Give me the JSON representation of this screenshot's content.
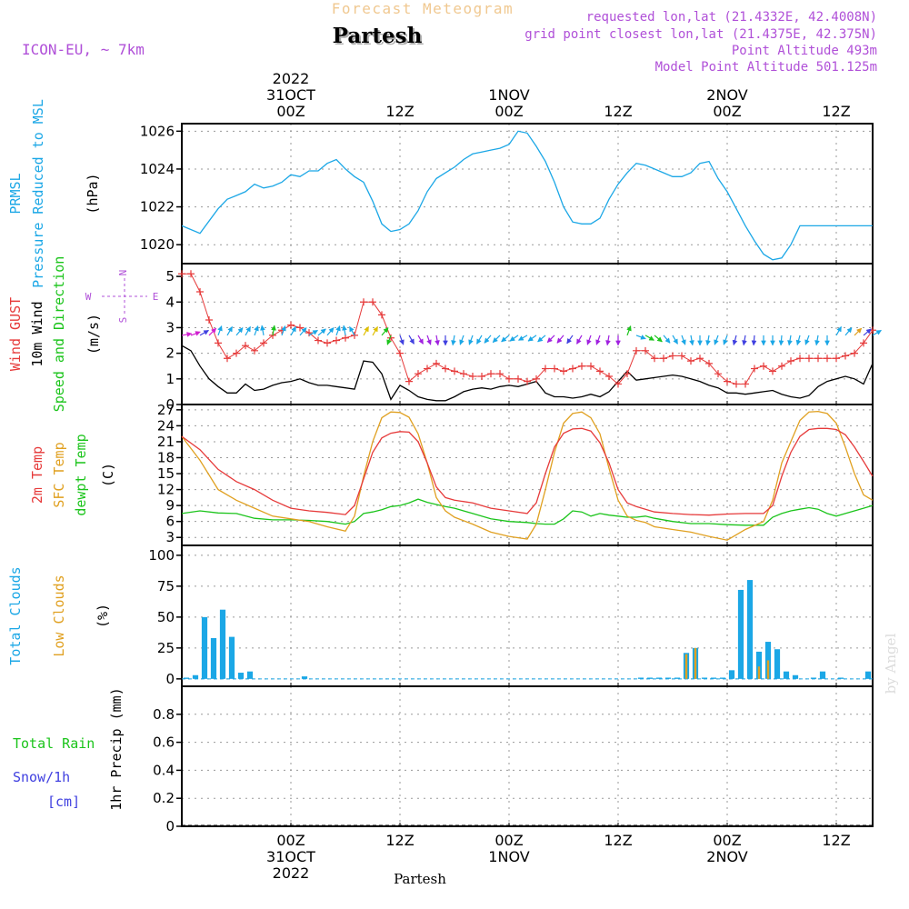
{
  "header": {
    "forecast_title": "Forecast Meteogram",
    "station": "Partesh",
    "model": "ICON-EU, ~ 7km",
    "requested": "requested lon,lat (21.4332E, 42.4008N)",
    "grid_point": "grid point closest lon,lat (21.4375E, 42.375N)",
    "point_altitude": "Point Altitude 493m",
    "model_altitude": "Model Point Altitude 501.125m",
    "footer_station": "Partesh",
    "credit": "by Angel"
  },
  "colors": {
    "pressure": "#1ba7e6",
    "gust": "#e63a3a",
    "wind": "#000000",
    "temp2m": "#e63a3a",
    "sfc": "#e0a020",
    "dewpt": "#1bc41b",
    "total_clouds": "#1ba7e6",
    "low_clouds": "#e0a020",
    "rain": "#1bc41b",
    "snow": "#4040e0",
    "meta": "#b050d8",
    "title_faint": "#f0c890"
  },
  "time_axis": {
    "top_labels": [
      {
        "t": 12,
        "lines": [
          "2022",
          "31OCT",
          "00Z"
        ]
      },
      {
        "t": 24,
        "lines": [
          "12Z"
        ]
      },
      {
        "t": 36,
        "lines": [
          "1NOV",
          "00Z"
        ]
      },
      {
        "t": 48,
        "lines": [
          "12Z"
        ]
      },
      {
        "t": 60,
        "lines": [
          "2NOV",
          "00Z"
        ]
      },
      {
        "t": 72,
        "lines": [
          "12Z"
        ]
      }
    ],
    "bottom_labels": [
      {
        "t": 12,
        "lines": [
          "00Z",
          "31OCT",
          "2022"
        ]
      },
      {
        "t": 24,
        "lines": [
          "12Z"
        ]
      },
      {
        "t": 36,
        "lines": [
          "00Z",
          "1NOV"
        ]
      },
      {
        "t": 48,
        "lines": [
          "12Z"
        ]
      },
      {
        "t": 60,
        "lines": [
          "00Z",
          "2NOV"
        ]
      },
      {
        "t": 72,
        "lines": [
          "12Z"
        ]
      }
    ]
  },
  "panels": {
    "pressure": {
      "label_lines": [
        {
          "text": "PRMSL",
          "color": "#1ba7e6"
        },
        {
          "text": "Pressure Reduced to MSL",
          "color": "#1ba7e6"
        }
      ],
      "unit": "(hPa)",
      "ticks": [
        1020,
        1022,
        1024,
        1026
      ]
    },
    "wind": {
      "label_lines": [
        {
          "text": "Wind GUST",
          "color": "#e63a3a"
        },
        {
          "text": "10m Wind",
          "color": "#000000"
        },
        {
          "text": "Speed and Direction",
          "color": "#1bc41b"
        }
      ],
      "unit": "(m/s)",
      "ticks": [
        0,
        1,
        2,
        3,
        4,
        5
      ],
      "compass": {
        "n": "N",
        "s": "S",
        "w": "W",
        "e": "E"
      }
    },
    "temp": {
      "label_lines": [
        {
          "text": "2m Temp",
          "color": "#e63a3a"
        },
        {
          "text": "SFC Temp",
          "color": "#e0a020"
        },
        {
          "text": "dewpt Temp",
          "color": "#1bc41b"
        }
      ],
      "unit": "(C)",
      "ticks": [
        3,
        6,
        9,
        12,
        15,
        18,
        21,
        24,
        27
      ]
    },
    "clouds": {
      "label_lines": [
        {
          "text": "Total Clouds",
          "color": "#1ba7e6"
        },
        {
          "text": "Low Clouds",
          "color": "#e0a020"
        }
      ],
      "unit": "(%)",
      "ticks": [
        0,
        25,
        50,
        75,
        100
      ]
    },
    "precip": {
      "left_labels": [
        {
          "text": "Total  Rain",
          "color": "#1bc41b"
        },
        {
          "text": "Snow/1h",
          "color": "#4040e0"
        },
        {
          "text": "[cm]",
          "color": "#4040e0"
        }
      ],
      "unit": "1hr Precip (mm)",
      "ticks": [
        0,
        0.2,
        0.4,
        0.6,
        0.8
      ]
    }
  },
  "chart_data": {
    "type": "line",
    "x_unit": "forecast hours from 30 OCT 12Z (00Z 31OCT at 12, 12Z at 24, 00Z 1NOV at 36, 12Z at 48, 00Z 2NOV at 60, 12Z at 72)",
    "x_range": [
      0,
      76
    ],
    "pressure_hpa": {
      "ylim": [
        1019.0,
        1026.4
      ],
      "x": [
        0,
        2,
        4,
        5,
        6,
        7,
        8,
        9,
        10,
        11,
        12,
        13,
        14,
        15,
        16,
        17,
        18,
        19,
        20,
        21,
        22,
        23,
        24,
        25,
        26,
        27,
        28,
        29,
        30,
        31,
        32,
        33,
        34,
        35,
        36,
        37,
        38,
        39,
        40,
        41,
        42,
        43,
        44,
        45,
        46,
        47,
        48,
        49,
        50,
        51,
        52,
        53,
        54,
        55,
        56,
        57,
        58,
        59,
        60,
        61,
        62,
        63,
        64,
        65,
        66,
        67,
        68,
        69,
        70,
        71,
        72,
        73,
        74,
        75,
        76
      ],
      "y": [
        1021.0,
        1020.6,
        1021.9,
        1022.4,
        1022.6,
        1022.8,
        1023.2,
        1023.0,
        1023.1,
        1023.3,
        1023.7,
        1023.6,
        1023.9,
        1023.9,
        1024.3,
        1024.5,
        1024.0,
        1023.6,
        1023.3,
        1022.3,
        1021.1,
        1020.7,
        1020.8,
        1021.1,
        1021.8,
        1022.8,
        1023.5,
        1023.8,
        1024.1,
        1024.5,
        1024.8,
        1024.9,
        1025.0,
        1025.1,
        1025.3,
        1026.0,
        1025.9,
        1025.2,
        1024.4,
        1023.3,
        1022.0,
        1021.2,
        1021.1,
        1021.1,
        1021.4,
        1022.4,
        1023.2,
        1023.8,
        1024.3,
        1024.2,
        1024.0,
        1023.8,
        1023.6,
        1023.6,
        1023.8,
        1024.3,
        1024.4,
        1023.5,
        1022.8,
        1021.9,
        1021.0,
        1020.2,
        1019.5,
        1019.2,
        1019.3,
        1020.0,
        1021.0,
        1021.0,
        1021.0,
        1021.0,
        1021.0,
        1021.0,
        1021.0,
        1021.0,
        1021.0
      ]
    },
    "wind_gust_ms": {
      "ylim": [
        0,
        5.5
      ],
      "x": [
        0,
        1,
        2,
        3,
        4,
        5,
        6,
        7,
        8,
        9,
        10,
        11,
        12,
        13,
        14,
        15,
        16,
        17,
        18,
        19,
        20,
        21,
        22,
        23,
        24,
        25,
        26,
        27,
        28,
        29,
        30,
        31,
        32,
        33,
        34,
        35,
        36,
        37,
        38,
        39,
        40,
        41,
        42,
        43,
        44,
        45,
        46,
        47,
        48,
        49,
        50,
        51,
        52,
        53,
        54,
        55,
        56,
        57,
        58,
        59,
        60,
        61,
        62,
        63,
        64,
        65,
        66,
        67,
        68,
        69,
        70,
        71,
        72,
        73,
        74,
        75,
        76
      ],
      "y": [
        5.1,
        5.1,
        4.4,
        3.3,
        2.4,
        1.8,
        2.0,
        2.3,
        2.1,
        2.4,
        2.7,
        2.9,
        3.1,
        3.0,
        2.8,
        2.5,
        2.4,
        2.5,
        2.6,
        2.7,
        4.0,
        4.0,
        3.5,
        2.6,
        2.0,
        0.9,
        1.2,
        1.4,
        1.6,
        1.4,
        1.3,
        1.2,
        1.1,
        1.1,
        1.2,
        1.2,
        1.0,
        1.0,
        0.9,
        1.0,
        1.4,
        1.4,
        1.3,
        1.4,
        1.5,
        1.5,
        1.3,
        1.1,
        0.8,
        1.2,
        2.1,
        2.1,
        1.8,
        1.8,
        1.9,
        1.9,
        1.7,
        1.8,
        1.6,
        1.2,
        0.9,
        0.8,
        0.8,
        1.4,
        1.5,
        1.3,
        1.5,
        1.7,
        1.8,
        1.8,
        1.8,
        1.8,
        1.8,
        1.9,
        2.0,
        2.4,
        2.9
      ]
    },
    "wind_10m_ms": {
      "x": [
        0,
        1,
        2,
        3,
        4,
        5,
        6,
        7,
        8,
        9,
        10,
        11,
        12,
        13,
        14,
        15,
        16,
        17,
        18,
        19,
        20,
        21,
        22,
        23,
        24,
        25,
        26,
        27,
        28,
        29,
        30,
        31,
        32,
        33,
        34,
        35,
        36,
        37,
        38,
        39,
        40,
        41,
        42,
        43,
        44,
        45,
        46,
        47,
        48,
        49,
        50,
        51,
        52,
        53,
        54,
        55,
        56,
        57,
        58,
        59,
        60,
        61,
        62,
        63,
        64,
        65,
        66,
        67,
        68,
        69,
        70,
        71,
        72,
        73,
        74,
        75,
        76
      ],
      "y": [
        2.3,
        2.1,
        1.5,
        1.0,
        0.7,
        0.45,
        0.45,
        0.8,
        0.55,
        0.6,
        0.75,
        0.85,
        0.9,
        1.0,
        0.85,
        0.75,
        0.75,
        0.7,
        0.65,
        0.6,
        1.7,
        1.65,
        1.2,
        0.2,
        0.75,
        0.55,
        0.3,
        0.2,
        0.15,
        0.15,
        0.3,
        0.5,
        0.6,
        0.65,
        0.6,
        0.7,
        0.75,
        0.7,
        0.8,
        0.9,
        0.45,
        0.3,
        0.3,
        0.25,
        0.3,
        0.4,
        0.3,
        0.5,
        0.9,
        1.3,
        0.95,
        1.0,
        1.05,
        1.1,
        1.15,
        1.1,
        1.0,
        0.9,
        0.75,
        0.65,
        0.45,
        0.45,
        0.4,
        0.45,
        0.5,
        0.55,
        0.4,
        0.3,
        0.25,
        0.35,
        0.7,
        0.9,
        1.0,
        1.1,
        1.0,
        0.8,
        1.6
      ]
    },
    "wind_direction_arrows": {
      "note": "arrows at y≈2.7 m/s, colored by speed",
      "x": [
        0,
        1,
        2,
        3,
        4,
        5,
        6,
        7,
        8,
        9,
        10,
        11,
        12,
        13,
        14,
        15,
        16,
        17,
        18,
        19,
        20,
        21,
        22,
        23,
        24,
        25,
        26,
        27,
        28,
        29,
        30,
        31,
        32,
        33,
        34,
        35,
        36,
        37,
        38,
        39,
        40,
        41,
        42,
        43,
        44,
        45,
        46,
        47,
        48,
        49,
        50,
        51,
        52,
        53,
        54,
        55,
        56,
        57,
        58,
        59,
        60,
        61,
        62,
        63,
        64,
        65,
        66,
        67,
        68,
        69,
        70,
        71,
        72,
        73,
        74,
        75,
        76
      ],
      "dir_deg": [
        80,
        70,
        60,
        45,
        20,
        30,
        40,
        30,
        20,
        350,
        10,
        20,
        30,
        40,
        60,
        50,
        40,
        20,
        350,
        330,
        30,
        30,
        40,
        200,
        160,
        150,
        150,
        160,
        170,
        180,
        190,
        200,
        200,
        210,
        220,
        225,
        230,
        235,
        240,
        235,
        230,
        225,
        220,
        215,
        210,
        200,
        200,
        190,
        180,
        20,
        110,
        120,
        130,
        140,
        150,
        160,
        170,
        180,
        190,
        200,
        200,
        195,
        190,
        185,
        180,
        180,
        185,
        190,
        195,
        200,
        190,
        180,
        30,
        40,
        45,
        50,
        60
      ],
      "colors": [
        "#d020d0",
        "#d020d0",
        "#4040e0",
        "#d020d0",
        "#1ba7e6",
        "#1ba7e6",
        "#1ba7e6",
        "#1ba7e6",
        "#1ba7e6",
        "#1ba7e6",
        "#1bc41b",
        "#1ba7e6",
        "#1ba7e6",
        "#1ba7e6",
        "#1ba7e6",
        "#1ba7e6",
        "#1ba7e6",
        "#1ba7e6",
        "#1ba7e6",
        "#1ba7e6",
        "#e0c000",
        "#e0c000",
        "#1bc41b",
        "#1bc41b",
        "#4040e0",
        "#4040e0",
        "#a020e0",
        "#a020e0",
        "#a020e0",
        "#4040e0",
        "#1ba7e6",
        "#1ba7e6",
        "#1ba7e6",
        "#1ba7e6",
        "#1ba7e6",
        "#1ba7e6",
        "#1ba7e6",
        "#1ba7e6",
        "#1ba7e6",
        "#1ba7e6",
        "#1ba7e6",
        "#a020e0",
        "#a020e0",
        "#4040e0",
        "#a020e0",
        "#a020e0",
        "#a020e0",
        "#a020e0",
        "#a020e0",
        "#1bc41b",
        "#1ba7e6",
        "#1bc41b",
        "#1bc41b",
        "#1ba7e6",
        "#1ba7e6",
        "#1ba7e6",
        "#1ba7e6",
        "#1ba7e6",
        "#1ba7e6",
        "#1ba7e6",
        "#1ba7e6",
        "#4040e0",
        "#4040e0",
        "#4040e0",
        "#1ba7e6",
        "#1ba7e6",
        "#1ba7e6",
        "#1ba7e6",
        "#1ba7e6",
        "#1ba7e6",
        "#1ba7e6",
        "#1ba7e6",
        "#1ba7e6",
        "#1ba7e6",
        "#e0a020",
        "#4040e0",
        "#1ba7e6"
      ]
    },
    "temp_c": {
      "ylim": [
        1.5,
        28
      ],
      "x": [
        0,
        2,
        4,
        6,
        8,
        10,
        12,
        14,
        16,
        18,
        19,
        20,
        21,
        22,
        23,
        24,
        25,
        26,
        27,
        28,
        29,
        30,
        32,
        34,
        36,
        38,
        39,
        40,
        41,
        42,
        43,
        44,
        45,
        46,
        47,
        48,
        49,
        50,
        51,
        52,
        54,
        56,
        58,
        60,
        62,
        64,
        65,
        66,
        67,
        68,
        69,
        70,
        71,
        72,
        73,
        74,
        75,
        76
      ],
      "t2m": [
        22.0,
        19.5,
        15.8,
        13.5,
        12.0,
        10.0,
        8.5,
        8.0,
        7.7,
        7.3,
        9.0,
        14.0,
        19.0,
        21.7,
        22.6,
        22.9,
        22.8,
        21.0,
        17.0,
        12.5,
        10.5,
        10.0,
        9.5,
        8.5,
        8.0,
        7.5,
        9.5,
        15.0,
        20.0,
        22.6,
        23.4,
        23.5,
        23.0,
        20.8,
        17.0,
        12.0,
        9.5,
        8.8,
        8.3,
        7.8,
        7.5,
        7.3,
        7.2,
        7.4,
        7.5,
        7.5,
        9.0,
        14.5,
        19.0,
        22.0,
        23.3,
        23.5,
        23.5,
        23.3,
        22.3,
        20.0,
        17.3,
        14.5
      ],
      "sfc": [
        22.0,
        17.5,
        12.0,
        10.0,
        8.5,
        7.0,
        6.5,
        6.0,
        5.0,
        4.2,
        7.0,
        14.5,
        21.0,
        25.5,
        26.6,
        26.5,
        25.6,
        22.5,
        17.0,
        10.5,
        8.0,
        6.8,
        5.5,
        4.0,
        3.2,
        2.7,
        5.5,
        12.0,
        19.0,
        24.5,
        26.3,
        26.6,
        25.5,
        22.5,
        16.0,
        10.0,
        7.0,
        6.2,
        5.8,
        5.0,
        4.5,
        4.0,
        3.2,
        2.5,
        4.5,
        6.0,
        10.0,
        17.0,
        21.0,
        25.0,
        26.6,
        26.7,
        26.3,
        24.5,
        20.0,
        15.0,
        11.0,
        10.0
      ],
      "dewpt": [
        7.5,
        8.0,
        7.6,
        7.5,
        6.6,
        6.3,
        6.3,
        6.2,
        6.0,
        5.5,
        6.0,
        7.5,
        7.8,
        8.2,
        8.8,
        9.0,
        9.5,
        10.2,
        9.6,
        9.2,
        8.8,
        8.5,
        7.5,
        6.5,
        6.0,
        5.8,
        5.6,
        5.5,
        5.5,
        6.5,
        8.0,
        7.8,
        7.0,
        7.5,
        7.2,
        7.0,
        6.8,
        6.8,
        7.0,
        6.6,
        6.0,
        5.6,
        5.6,
        5.4,
        5.3,
        5.3,
        6.8,
        7.5,
        8.0,
        8.3,
        8.6,
        8.3,
        7.5,
        7.0,
        7.5,
        8.0,
        8.5,
        9.0
      ]
    },
    "total_clouds_pct": {
      "ylim": [
        -6,
        108
      ],
      "x": [
        0.5,
        1.5,
        2.5,
        3.5,
        4.5,
        5.5,
        6.5,
        7.5,
        13.5,
        49.5,
        50.5,
        51.5,
        52.5,
        53.5,
        54.5,
        55.5,
        56.5,
        57.5,
        58.5,
        59.5,
        60.5,
        61.5,
        62.5,
        63.5,
        64.5,
        65.5,
        66.5,
        67.5,
        68.5,
        69.5,
        70.5,
        71.5,
        72.5,
        73.5,
        74.5,
        75.5
      ],
      "values": [
        1,
        3,
        50,
        33,
        56,
        34,
        5,
        6,
        2,
        0,
        1,
        1,
        1,
        1,
        1,
        21,
        25,
        1,
        1,
        1,
        7,
        72,
        80,
        22,
        30,
        24,
        6,
        3,
        0,
        1,
        6,
        0,
        1,
        0,
        0,
        6
      ]
    },
    "low_clouds_pct": {
      "x": [
        55.5,
        56.5,
        63.5,
        64.5
      ],
      "values": [
        20,
        25,
        10,
        15
      ]
    },
    "precip_mm": {
      "ylim": [
        0,
        1.0
      ],
      "rain": [],
      "snow_cm": []
    }
  }
}
